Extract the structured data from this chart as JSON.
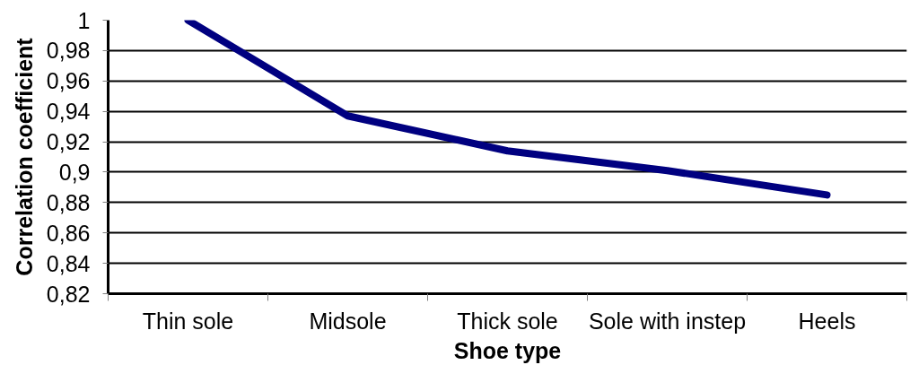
{
  "chart_data": {
    "type": "line",
    "xlabel": "Shoe type",
    "ylabel": "Correlation coefficient",
    "categories": [
      "Thin sole",
      "Midsole",
      "Thick sole",
      "Sole with instep",
      "Heels"
    ],
    "series": [
      {
        "color": "#000080",
        "values": [
          1.0,
          0.937,
          0.914,
          0.901,
          0.885
        ]
      }
    ],
    "ylim": [
      0.82,
      1
    ],
    "yticks": [
      {
        "value": 0.82,
        "label": "0,82"
      },
      {
        "value": 0.84,
        "label": "0,84"
      },
      {
        "value": 0.86,
        "label": "0,86"
      },
      {
        "value": 0.88,
        "label": "0,88"
      },
      {
        "value": 0.9,
        "label": "0,9"
      },
      {
        "value": 0.92,
        "label": "0,92"
      },
      {
        "value": 0.94,
        "label": "0,94"
      },
      {
        "value": 0.96,
        "label": "0,96"
      },
      {
        "value": 0.98,
        "label": "0,98"
      },
      1
    ],
    "grid": "y",
    "line_style": "solid"
  }
}
